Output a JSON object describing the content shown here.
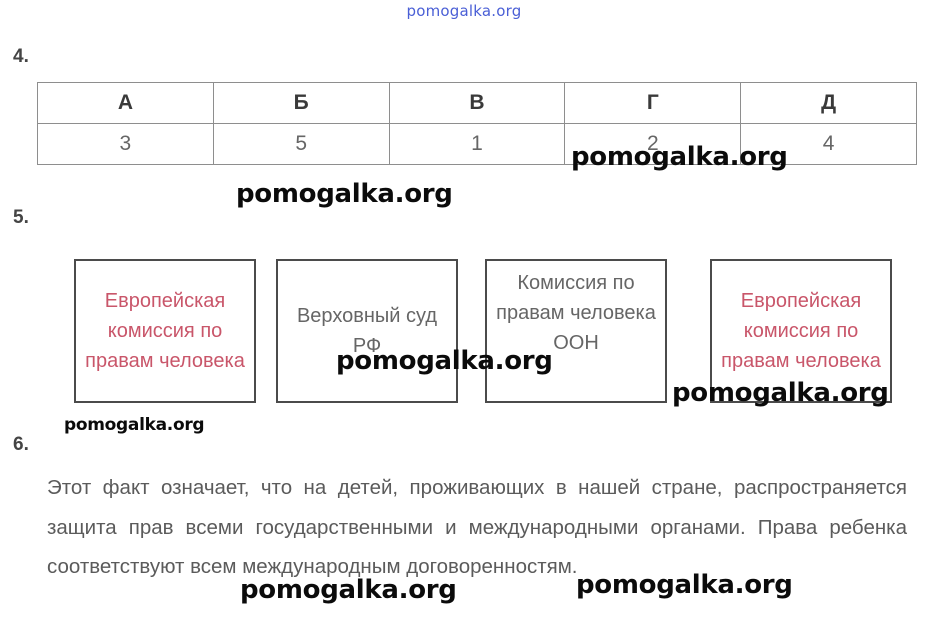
{
  "site_header": "pomogalka.org",
  "questions": {
    "q4": {
      "number": "4.",
      "headers": [
        "А",
        "Б",
        "В",
        "Г",
        "Д"
      ],
      "values": [
        "3",
        "5",
        "1",
        "2",
        "4"
      ]
    },
    "q5": {
      "number": "5.",
      "boxes": [
        "Европейская комиссия по правам человека",
        "Верховный суд РФ",
        "Комиссия по правам человека ООН",
        "Европейская комиссия по правам человека"
      ]
    },
    "q6": {
      "number": "6.",
      "text": "Этот факт означает, что на детей, проживающих в нашей стране, распространяется защита прав всеми государственными и международными органами. Права ребенка соответствуют всем международным договоренностям."
    }
  },
  "watermarks": [
    "pomogalka.org",
    "pomogalka.org",
    "pomogalka.org",
    "pomogalka.org",
    "pomogalka.org",
    "pomogalka.org",
    "pomogalka.org"
  ],
  "colors": {
    "header_link": "#4a5fd6",
    "highlight_text": "#c9566a",
    "body_text": "#5b5b5b",
    "border": "#4b4b4b"
  }
}
